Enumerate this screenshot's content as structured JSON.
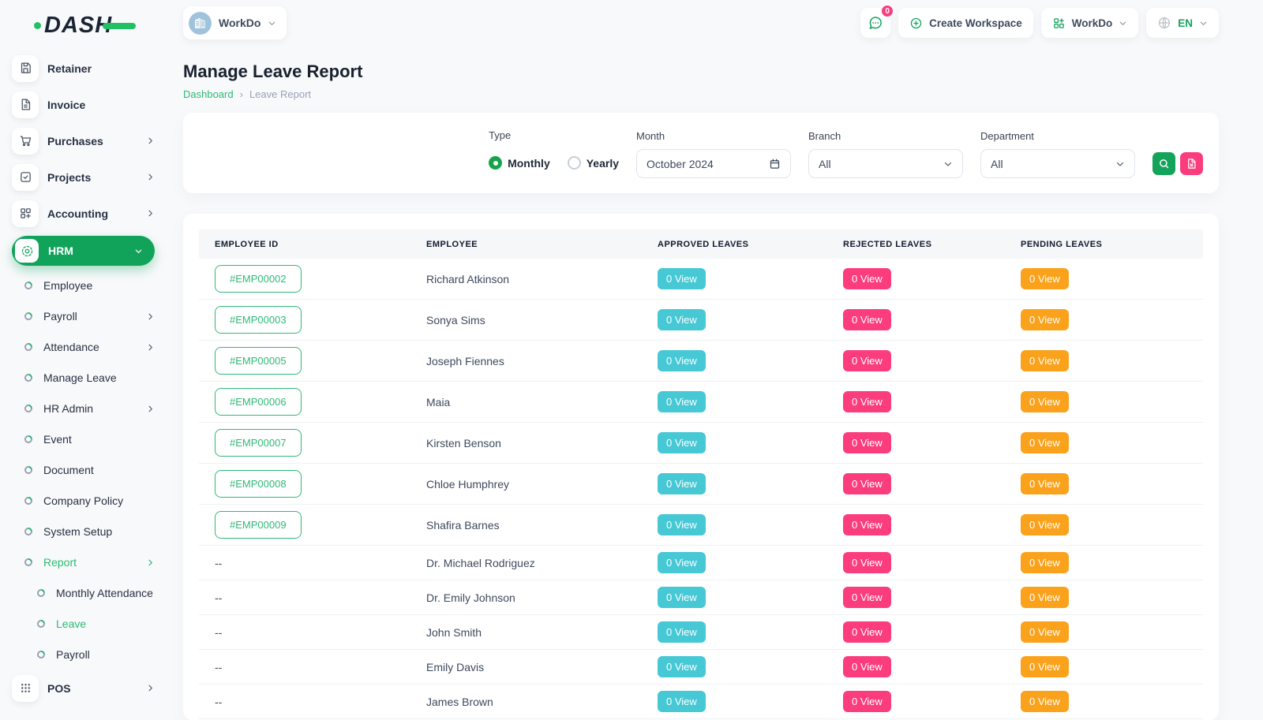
{
  "brand": {
    "logo_text": "DASH"
  },
  "header": {
    "workspace": {
      "label": "WorkDo"
    },
    "messages": {
      "badge": "0"
    },
    "create_workspace_label": "Create Workspace",
    "app_switcher_label": "WorkDo",
    "language": {
      "label": "EN"
    }
  },
  "sidebar": {
    "items": [
      {
        "label": "Retainer",
        "icon": "save",
        "type": "top"
      },
      {
        "label": "Invoice",
        "icon": "invoice",
        "type": "top"
      },
      {
        "label": "Purchases",
        "icon": "cart",
        "type": "top",
        "chevron": "right"
      },
      {
        "label": "Projects",
        "icon": "projects",
        "type": "top",
        "chevron": "right"
      },
      {
        "label": "Accounting",
        "icon": "accounting",
        "type": "top",
        "chevron": "right"
      },
      {
        "label": "HRM",
        "icon": "hrm",
        "type": "top",
        "active": true,
        "chevron": "down"
      },
      {
        "label": "Employee",
        "type": "sub"
      },
      {
        "label": "Payroll",
        "type": "sub",
        "chevron": "right"
      },
      {
        "label": "Attendance",
        "type": "sub",
        "chevron": "right"
      },
      {
        "label": "Manage Leave",
        "type": "sub"
      },
      {
        "label": "HR Admin",
        "type": "sub",
        "chevron": "right"
      },
      {
        "label": "Event",
        "type": "sub"
      },
      {
        "label": "Document",
        "type": "sub"
      },
      {
        "label": "Company Policy",
        "type": "sub"
      },
      {
        "label": "System Setup",
        "type": "sub"
      },
      {
        "label": "Report",
        "type": "sub",
        "active": true,
        "chevron": "right"
      },
      {
        "label": "Monthly Attendance",
        "type": "subsub"
      },
      {
        "label": "Leave",
        "type": "subsub",
        "active": true
      },
      {
        "label": "Payroll",
        "type": "subsub"
      },
      {
        "label": "POS",
        "icon": "pos",
        "type": "top",
        "chevron": "right"
      }
    ]
  },
  "page": {
    "title": "Manage Leave Report",
    "breadcrumb_home": "Dashboard",
    "breadcrumb_separator": "›",
    "breadcrumb_current": "Leave Report"
  },
  "filters": {
    "type_label": "Type",
    "option_monthly": "Monthly",
    "option_yearly": "Yearly",
    "type_selected": "Monthly",
    "month_label": "Month",
    "month_value": "October 2024",
    "branch_label": "Branch",
    "branch_value": "All",
    "department_label": "Department",
    "department_value": "All"
  },
  "table": {
    "columns": [
      "EMPLOYEE ID",
      "EMPLOYEE",
      "APPROVED LEAVES",
      "REJECTED LEAVES",
      "PENDING LEAVES"
    ],
    "rows": [
      {
        "id": "#EMP00002",
        "name": "Richard Atkinson",
        "approved": "0 View",
        "rejected": "0 View",
        "pending": "0 View"
      },
      {
        "id": "#EMP00003",
        "name": "Sonya Sims",
        "approved": "0 View",
        "rejected": "0 View",
        "pending": "0 View"
      },
      {
        "id": "#EMP00005",
        "name": "Joseph Fiennes",
        "approved": "0 View",
        "rejected": "0 View",
        "pending": "0 View"
      },
      {
        "id": "#EMP00006",
        "name": "Maia",
        "approved": "0 View",
        "rejected": "0 View",
        "pending": "0 View"
      },
      {
        "id": "#EMP00007",
        "name": "Kirsten Benson",
        "approved": "0 View",
        "rejected": "0 View",
        "pending": "0 View"
      },
      {
        "id": "#EMP00008",
        "name": "Chloe Humphrey",
        "approved": "0 View",
        "rejected": "0 View",
        "pending": "0 View"
      },
      {
        "id": "#EMP00009",
        "name": "Shafira Barnes",
        "approved": "0 View",
        "rejected": "0 View",
        "pending": "0 View"
      },
      {
        "id": "--",
        "name": "Dr. Michael Rodriguez",
        "approved": "0 View",
        "rejected": "0 View",
        "pending": "0 View"
      },
      {
        "id": "--",
        "name": "Dr. Emily Johnson",
        "approved": "0 View",
        "rejected": "0 View",
        "pending": "0 View"
      },
      {
        "id": "--",
        "name": "John Smith",
        "approved": "0 View",
        "rejected": "0 View",
        "pending": "0 View"
      },
      {
        "id": "--",
        "name": "Emily Davis",
        "approved": "0 View",
        "rejected": "0 View",
        "pending": "0 View"
      },
      {
        "id": "--",
        "name": "James Brown",
        "approved": "0 View",
        "rejected": "0 View",
        "pending": "0 View"
      }
    ]
  },
  "colors": {
    "accent_green": "#13a35b",
    "link_green": "#2dba70",
    "badge_teal": "#46c8d5",
    "badge_pink": "#fb3d7d",
    "badge_orange": "#fba21c"
  }
}
